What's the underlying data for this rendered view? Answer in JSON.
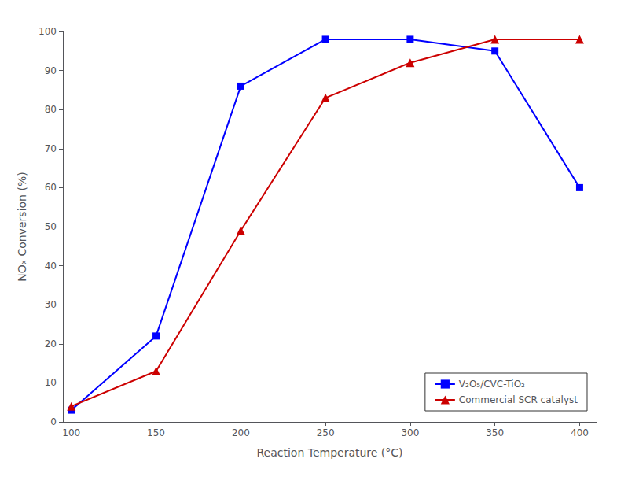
{
  "chart_data": {
    "type": "line",
    "x": [
      100,
      150,
      200,
      250,
      300,
      350,
      400
    ],
    "series": [
      {
        "name": "V₂O₅/CVC-TiO₂",
        "color": "#0000FF",
        "marker": "square",
        "line_style": "solid",
        "values": [
          3,
          22,
          86,
          98,
          98,
          95,
          60
        ]
      },
      {
        "name": "Commercial SCR catalyst",
        "color": "#CC0000",
        "marker": "triangle",
        "line_style": "solid",
        "values": [
          4,
          13,
          49,
          83,
          92,
          98,
          98
        ]
      }
    ],
    "xlabel": "Reaction Temperature (°C)",
    "ylabel": "NOₓ Conversion (%)",
    "xlim": [
      95,
      410
    ],
    "ylim": [
      0,
      100
    ],
    "xticks": [
      100,
      150,
      200,
      250,
      300,
      350,
      400
    ],
    "yticks": [
      0,
      10,
      20,
      30,
      40,
      50,
      60,
      70,
      80,
      90,
      100
    ],
    "grid": false,
    "legend": "lower right"
  }
}
